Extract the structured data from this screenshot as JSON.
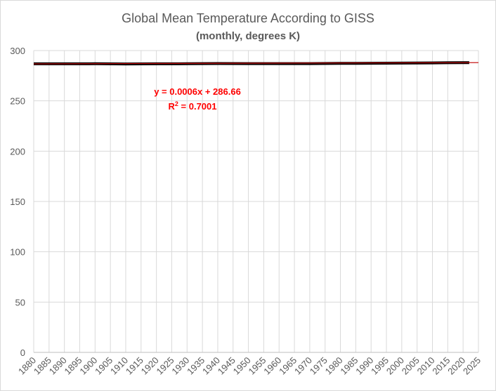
{
  "chart_data": {
    "type": "line",
    "title": "Global Mean Temperature According to GISS",
    "subtitle": "(monthly, degrees K)",
    "xlabel": "",
    "ylabel": "",
    "ylim": [
      0,
      300
    ],
    "y_ticks": [
      0,
      50,
      100,
      150,
      200,
      250,
      300
    ],
    "y_tick_labels": [
      "0",
      "50",
      "100",
      "150",
      "200",
      "250",
      "300"
    ],
    "xlim": [
      1880,
      2025
    ],
    "x_ticks": [
      1880,
      1885,
      1890,
      1895,
      1900,
      1905,
      1910,
      1915,
      1920,
      1925,
      1930,
      1935,
      1940,
      1945,
      1950,
      1955,
      1960,
      1965,
      1970,
      1975,
      1980,
      1985,
      1990,
      1995,
      2000,
      2005,
      2010,
      2015,
      2020,
      2025
    ],
    "x_tick_labels": [
      "1880",
      "1885",
      "1890",
      "1895",
      "1900",
      "1905",
      "1910",
      "1915",
      "1920",
      "1925",
      "1930",
      "1935",
      "1940",
      "1945",
      "1950",
      "1955",
      "1960",
      "1965",
      "1970",
      "1975",
      "1980",
      "1985",
      "1990",
      "1995",
      "2000",
      "2005",
      "2010",
      "2015",
      "2020",
      "2025"
    ],
    "grid": true,
    "series": [
      {
        "color": "#000000",
        "x": [
          1880,
          1890,
          1900,
          1910,
          1920,
          1930,
          1940,
          1950,
          1960,
          1970,
          1980,
          1990,
          2000,
          2010,
          2020,
          2022
        ],
        "values": [
          286.8,
          286.8,
          286.9,
          286.7,
          286.8,
          286.9,
          287.1,
          287.0,
          287.0,
          287.0,
          287.2,
          287.4,
          287.5,
          287.7,
          288.0,
          287.9
        ]
      }
    ],
    "trendline": {
      "color": "#c00000",
      "x": [
        1880,
        2025
      ],
      "values": [
        286.8,
        288.0
      ]
    },
    "annotations": {
      "equation": "y = 0.0006x + 286.66",
      "r2_prefix": "R",
      "r2_sup": "2",
      "r2_suffix": " = 0.7001",
      "color": "#ff0000"
    }
  }
}
